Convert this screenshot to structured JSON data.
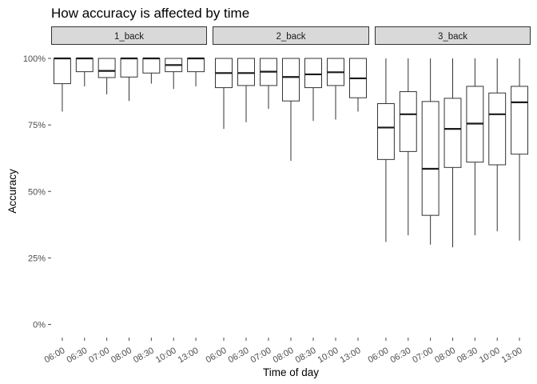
{
  "chart_data": {
    "type": "boxplot",
    "title": "How accuracy is affected by time",
    "xlabel": "Time of day",
    "ylabel": "Accuracy",
    "ylim": [
      0,
      1
    ],
    "y_ticks": [
      0,
      0.25,
      0.5,
      0.75,
      1.0
    ],
    "y_tick_labels": [
      "0%",
      "25%",
      "50%",
      "75%",
      "100%"
    ],
    "categories": [
      "06:00",
      "06:30",
      "07:00",
      "08:00",
      "08:30",
      "10:00",
      "13:00"
    ],
    "grid": false,
    "facets": [
      {
        "name": "1_back",
        "boxes": [
          {
            "x": "06:00",
            "min": 0.8,
            "q1": 0.905,
            "median": 1.0,
            "q3": 1.0,
            "max": 1.0
          },
          {
            "x": "06:30",
            "min": 0.895,
            "q1": 0.95,
            "median": 1.0,
            "q3": 1.0,
            "max": 1.0
          },
          {
            "x": "07:00",
            "min": 0.865,
            "q1": 0.928,
            "median": 0.953,
            "q3": 1.0,
            "max": 1.0
          },
          {
            "x": "08:00",
            "min": 0.84,
            "q1": 0.93,
            "median": 1.0,
            "q3": 1.0,
            "max": 1.0
          },
          {
            "x": "08:30",
            "min": 0.905,
            "q1": 0.945,
            "median": 1.0,
            "q3": 1.0,
            "max": 1.0
          },
          {
            "x": "10:00",
            "min": 0.885,
            "q1": 0.95,
            "median": 0.975,
            "q3": 1.0,
            "max": 1.0
          },
          {
            "x": "13:00",
            "min": 0.895,
            "q1": 0.95,
            "median": 1.0,
            "q3": 1.0,
            "max": 1.0
          }
        ]
      },
      {
        "name": "2_back",
        "boxes": [
          {
            "x": "06:00",
            "min": 0.735,
            "q1": 0.89,
            "median": 0.945,
            "q3": 1.0,
            "max": 1.0
          },
          {
            "x": "06:30",
            "min": 0.76,
            "q1": 0.898,
            "median": 0.945,
            "q3": 1.0,
            "max": 1.0
          },
          {
            "x": "07:00",
            "min": 0.81,
            "q1": 0.898,
            "median": 0.95,
            "q3": 1.0,
            "max": 1.0
          },
          {
            "x": "08:00",
            "min": 0.615,
            "q1": 0.84,
            "median": 0.93,
            "q3": 1.0,
            "max": 1.0
          },
          {
            "x": "08:30",
            "min": 0.765,
            "q1": 0.89,
            "median": 0.94,
            "q3": 1.0,
            "max": 1.0
          },
          {
            "x": "10:00",
            "min": 0.77,
            "q1": 0.898,
            "median": 0.948,
            "q3": 1.0,
            "max": 1.0
          },
          {
            "x": "13:00",
            "min": 0.8,
            "q1": 0.852,
            "median": 0.925,
            "q3": 1.0,
            "max": 1.0
          }
        ]
      },
      {
        "name": "3_back",
        "boxes": [
          {
            "x": "06:00",
            "min": 0.31,
            "q1": 0.62,
            "median": 0.74,
            "q3": 0.83,
            "max": 1.0
          },
          {
            "x": "06:30",
            "min": 0.335,
            "q1": 0.65,
            "median": 0.79,
            "q3": 0.875,
            "max": 1.0
          },
          {
            "x": "07:00",
            "min": 0.3,
            "q1": 0.41,
            "median": 0.585,
            "q3": 0.838,
            "max": 1.0
          },
          {
            "x": "08:00",
            "min": 0.29,
            "q1": 0.59,
            "median": 0.735,
            "q3": 0.85,
            "max": 1.0
          },
          {
            "x": "08:30",
            "min": 0.335,
            "q1": 0.61,
            "median": 0.755,
            "q3": 0.895,
            "max": 1.0
          },
          {
            "x": "10:00",
            "min": 0.35,
            "q1": 0.6,
            "median": 0.79,
            "q3": 0.87,
            "max": 1.0
          },
          {
            "x": "13:00",
            "min": 0.315,
            "q1": 0.64,
            "median": 0.835,
            "q3": 0.895,
            "max": 1.0
          }
        ]
      }
    ],
    "colors": {
      "strip_fill": "#d9d9d9",
      "strip_border": "#333333",
      "box_stroke": "#333333",
      "box_fill": "#ffffff",
      "tick_color": "#4d4d4d"
    }
  }
}
